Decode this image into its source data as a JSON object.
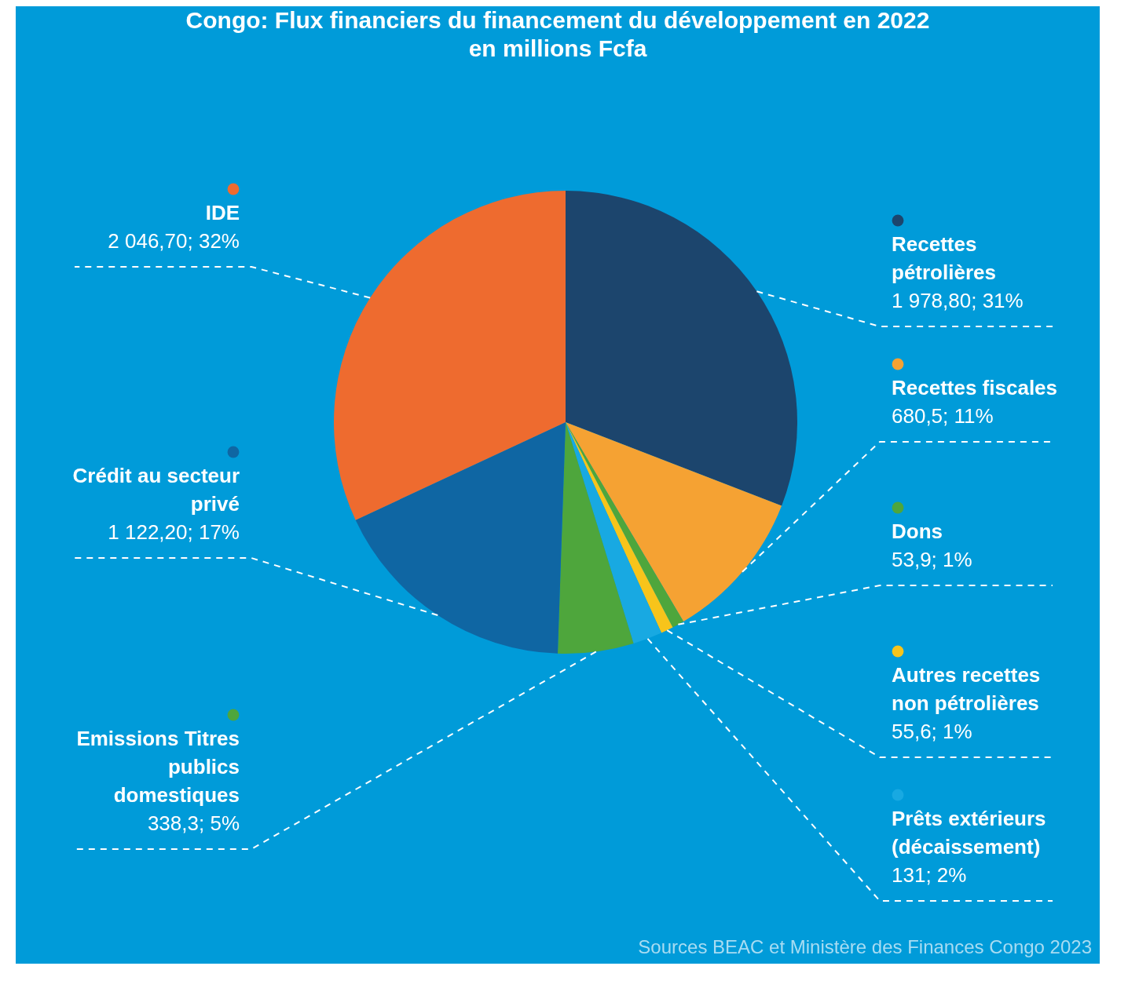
{
  "chart_data": {
    "type": "pie",
    "title": "Congo: Flux financiers du financement du développement en 2022",
    "subtitle": "en millions Fcfa",
    "categories": [
      "Recettes pétrolières",
      "Recettes fiscales",
      "Dons",
      "Autres recettes non pétrolières",
      "Prêts extérieurs (décaissement)",
      "Emissions Titres publics domestiques",
      "Crédit au secteur privé",
      "IDE"
    ],
    "values": [
      1978.8,
      680.5,
      53.9,
      55.6,
      131,
      338.3,
      1122.2,
      2046.7
    ],
    "colors": [
      "#1c456d",
      "#f5a233",
      "#4ea63c",
      "#f7c41b",
      "#18a9e2",
      "#4ea63c",
      "#0f66a3",
      "#ee6b2f"
    ],
    "value_labels": [
      "1 978,80; 31%",
      "680,5; 11%",
      "53,9; 1%",
      "55,6; 1%",
      "131; 2%",
      "338,3; 5%",
      "1 122,20; 17%",
      "2 046,70; 32%"
    ],
    "legend": "right",
    "annotations": [
      "Sources BEAC et Ministère des Finances Congo 2023"
    ]
  }
}
